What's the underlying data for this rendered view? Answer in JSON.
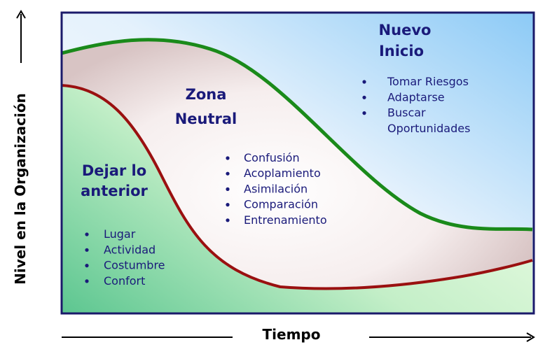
{
  "y_axis_label": "Nivel en la Organización",
  "x_axis_label": "Tiempo",
  "zones": [
    {
      "title": [
        "Dejar lo",
        "anterior"
      ],
      "items": [
        "Lugar",
        "Actividad",
        "Costumbre",
        "Confort"
      ]
    },
    {
      "title": [
        "Zona",
        "Neutral"
      ],
      "items": [
        "Confusión",
        "Acoplamiento",
        "Asimilación",
        "Comparación",
        "Entrenamiento"
      ]
    },
    {
      "title": [
        "Nuevo",
        "Inicio"
      ],
      "items": [
        "Tomar Riesgos",
        "Adaptarse",
        "Buscar",
        "Oportunidades"
      ]
    }
  ]
}
